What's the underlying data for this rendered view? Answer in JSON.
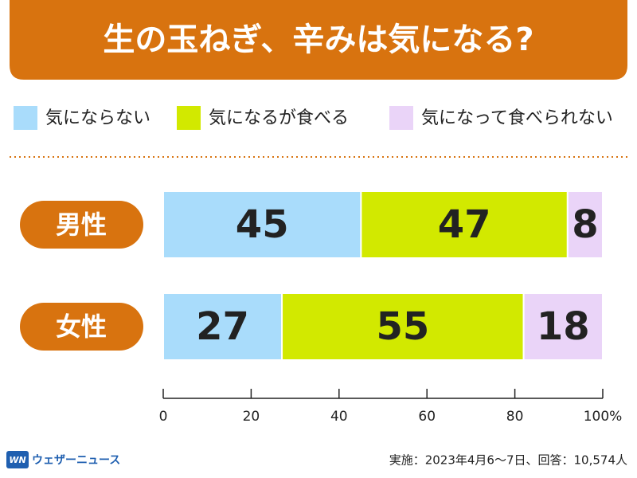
{
  "chart_data": {
    "type": "stacked-barh",
    "title": "生の玉ねぎ、辛みは気になる?",
    "categories": [
      "男性",
      "女性"
    ],
    "series": [
      {
        "name": "気にならない",
        "color": "#a9dcfb",
        "values": [
          45,
          27
        ]
      },
      {
        "name": "気になるが食べる",
        "color": "#d2e900",
        "values": [
          47,
          55
        ]
      },
      {
        "name": "気になって食べられない",
        "color": "#ead4f8",
        "values": [
          8,
          18
        ]
      }
    ],
    "xlim": [
      0,
      100
    ],
    "xticks": [
      0,
      20,
      40,
      60,
      80,
      {
        "value": 100,
        "label": "100%"
      }
    ],
    "accent_color": "#d8730f",
    "note": "実施：2023年4月6〜7日、回答：10,574人",
    "logo": {
      "mark": "WN",
      "name": "ウェザーニュース"
    }
  }
}
